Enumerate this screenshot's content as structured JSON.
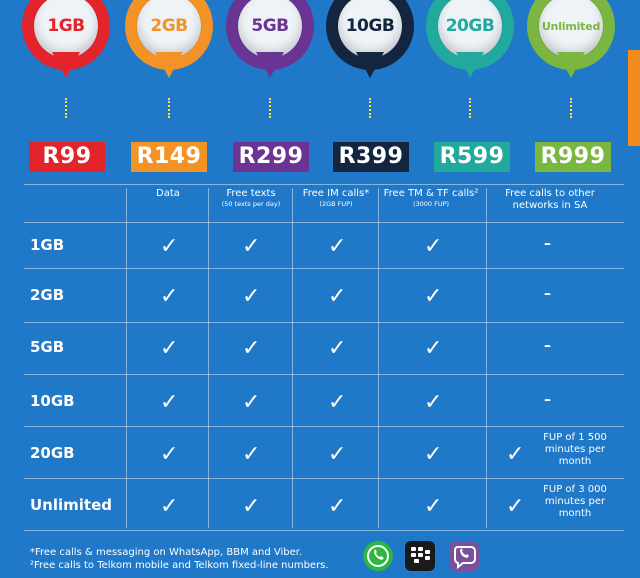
{
  "plans": [
    {
      "size": "1GB",
      "price": "R99",
      "color": "#e3242b"
    },
    {
      "size": "2GB",
      "price": "R149",
      "color": "#f39325"
    },
    {
      "size": "5GB",
      "price": "R299",
      "color": "#6a3494"
    },
    {
      "size": "10GB",
      "price": "R399",
      "color": "#14253f"
    },
    {
      "size": "20GB",
      "price": "R599",
      "color": "#22a99d"
    },
    {
      "size": "Unlimited",
      "price": "R999",
      "color": "#7bb641"
    }
  ],
  "columns": [
    {
      "title": "Data",
      "sub": ""
    },
    {
      "title": "Free texts",
      "sub": "(50 texts per day)"
    },
    {
      "title": "Free IM calls*",
      "sub": "(2GB FUP)"
    },
    {
      "title": "Free TM & TF calls²",
      "sub": "(3000 FUP)"
    },
    {
      "title": "Free calls to other networks in SA",
      "sub": ""
    }
  ],
  "rows": [
    {
      "label": "1GB",
      "other": "–"
    },
    {
      "label": "2GB",
      "other": "–"
    },
    {
      "label": "5GB",
      "other": "–"
    },
    {
      "label": "10GB",
      "other": "–"
    },
    {
      "label": "20GB",
      "other_fup": "FUP of 1 500 minutes per month"
    },
    {
      "label": "Unlimited",
      "other_fup": "FUP of 3 000 minutes per month"
    }
  ],
  "check": "✓",
  "footer": {
    "line1": "*Free calls & messaging on WhatsApp, BBM and Viber.",
    "line2": "²Free calls to Telkom mobile and Telkom fixed-line numbers."
  },
  "icons": [
    "whatsapp-icon",
    "blackberry-messenger-icon",
    "viber-icon"
  ],
  "colors": {
    "background": "#1f78c8",
    "dots": "#ffe14a",
    "side_tab": "#f28c1c"
  }
}
